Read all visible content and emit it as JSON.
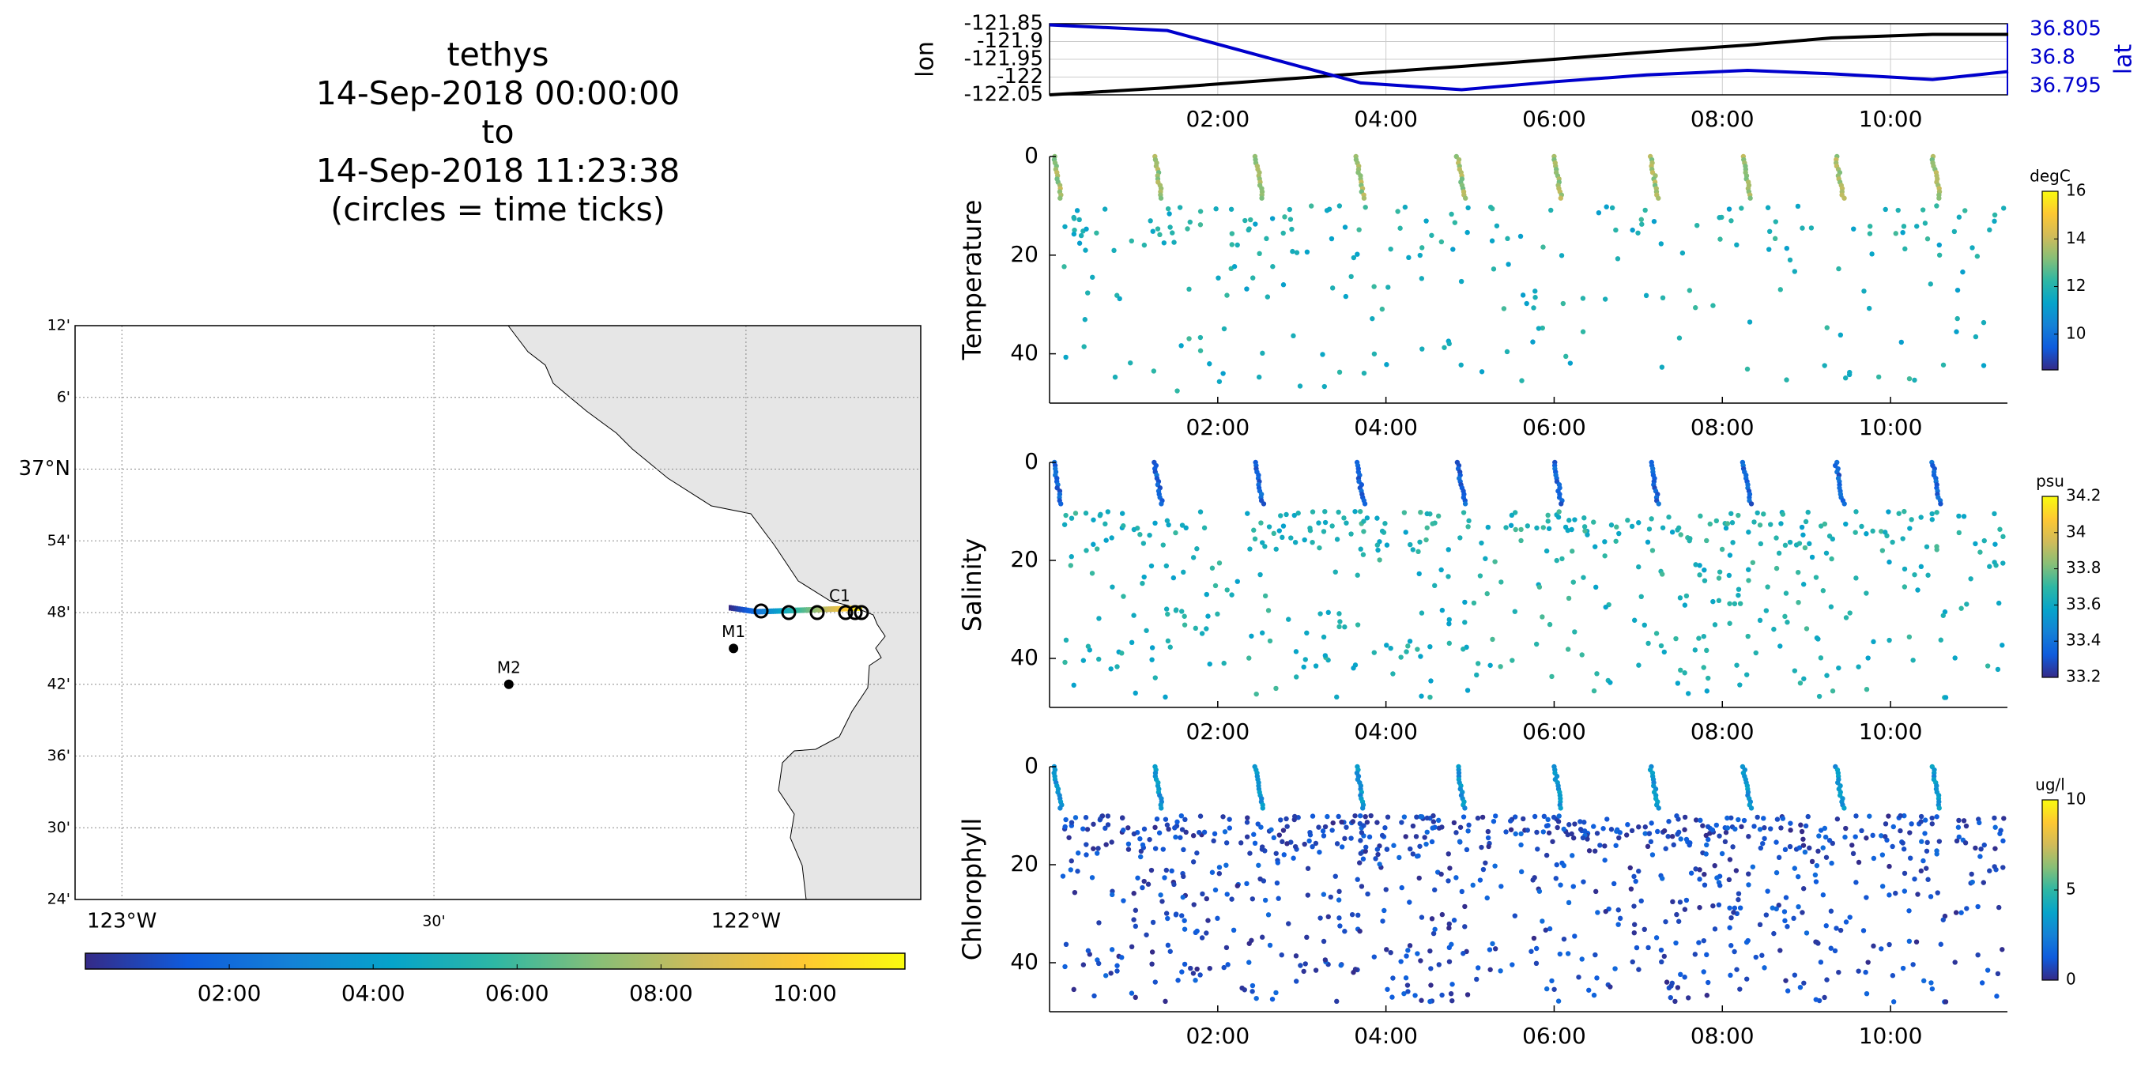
{
  "title_lines": [
    "tethys",
    "14-Sep-2018 00:00:00",
    "to",
    "14-Sep-2018 11:23:38",
    "(circles = time ticks)"
  ],
  "colors": {
    "track_line": "#0000cc",
    "lon_line": "#000000",
    "lat_axis": "#0000cc",
    "land": "#e6e6e6",
    "parula": [
      "#352a87",
      "#0f5cdd",
      "#1481d6",
      "#06a4ca",
      "#2eb7a4",
      "#87bf77",
      "#d1bb59",
      "#fec832",
      "#f9fb0e"
    ]
  },
  "time_ticks": [
    "02:00",
    "04:00",
    "06:00",
    "08:00",
    "10:00"
  ],
  "map": {
    "lat_ticks": [
      "12'",
      "6'",
      "37°N",
      "54'",
      "48'",
      "42'",
      "36'",
      "30'",
      "24'"
    ],
    "lon_ticks": [
      "123°W",
      "30'",
      "122°W"
    ],
    "stations": [
      {
        "name": "M2",
        "lon": -122.38,
        "lat": 36.7
      },
      {
        "name": "M1",
        "lon": -122.02,
        "lat": 36.75
      },
      {
        "name": "C1",
        "lon": -121.85,
        "lat": 36.8
      }
    ],
    "colorbar_ticks": [
      "02:00",
      "04:00",
      "06:00",
      "08:00",
      "10:00"
    ]
  },
  "chart_data": [
    {
      "type": "line",
      "panel": "position",
      "x_unit": "hours since 14-Sep-2018 00:00",
      "left_axis": {
        "label": "lon",
        "ticks": [
          "-121.85",
          "-121.9",
          "-121.95",
          "-122",
          "-122.05"
        ],
        "ylim": [
          -122.05,
          -121.85
        ]
      },
      "right_axis": {
        "label": "lat",
        "ticks": [
          "36.805",
          "36.8",
          "36.795"
        ],
        "ylim": [
          36.7935,
          36.806
        ]
      },
      "series": [
        {
          "name": "lon",
          "axis": "left",
          "x": [
            0,
            1.4,
            3.7,
            4.9,
            6.0,
            7.1,
            8.3,
            9.3,
            10.5,
            11.4
          ],
          "values": [
            -122.05,
            -122.03,
            -121.99,
            -121.97,
            -121.95,
            -121.93,
            -121.91,
            -121.89,
            -121.88,
            -121.88
          ]
        },
        {
          "name": "lat",
          "axis": "right",
          "x": [
            0,
            1.4,
            3.7,
            4.9,
            6.0,
            7.1,
            8.3,
            9.3,
            10.5,
            11.4
          ],
          "values": [
            36.8058,
            36.8048,
            36.7956,
            36.7944,
            36.7958,
            36.797,
            36.7978,
            36.7972,
            36.7962,
            36.7976
          ]
        }
      ],
      "xlim": [
        0,
        11.39
      ]
    },
    {
      "type": "scatter",
      "panel": "temperature",
      "ylabel": "Temperature",
      "units": "degC",
      "ylim": [
        0,
        50
      ],
      "y_reversed": true,
      "yticks": [
        0,
        20,
        40
      ],
      "clim": [
        8.5,
        16
      ],
      "cticks": [
        "10",
        "12",
        "14",
        "16"
      ],
      "profiles_x": [
        0.05,
        1.25,
        2.45,
        3.65,
        4.85,
        6.0,
        7.15,
        8.25,
        9.35,
        10.5
      ],
      "surface_color_value": 13.5,
      "body_color_value": 11.8
    },
    {
      "type": "scatter",
      "panel": "salinity",
      "ylabel": "Salinity",
      "units": "psu",
      "ylim": [
        0,
        50
      ],
      "y_reversed": true,
      "yticks": [
        0,
        20,
        40
      ],
      "clim": [
        33.2,
        34.2
      ],
      "cticks": [
        "33.2",
        "33.4",
        "33.6",
        "33.8",
        "34",
        "34.2"
      ],
      "profiles_x": [
        0.05,
        1.25,
        2.45,
        3.65,
        4.85,
        6.0,
        7.15,
        8.25,
        9.35,
        10.5
      ],
      "surface_color_value": 33.35,
      "body_color_value": 33.65
    },
    {
      "type": "scatter",
      "panel": "chlorophyll",
      "ylabel": "Chlorophyll",
      "units": "ug/l",
      "ylim": [
        0,
        50
      ],
      "y_reversed": true,
      "yticks": [
        0,
        20,
        40
      ],
      "clim": [
        0,
        10
      ],
      "cticks": [
        "0",
        "5",
        "10"
      ],
      "profiles_x": [
        0.05,
        1.25,
        2.45,
        3.65,
        4.85,
        6.0,
        7.15,
        8.25,
        9.35,
        10.5
      ],
      "surface_color_value": 3.2,
      "body_color_value": 0.9
    }
  ]
}
